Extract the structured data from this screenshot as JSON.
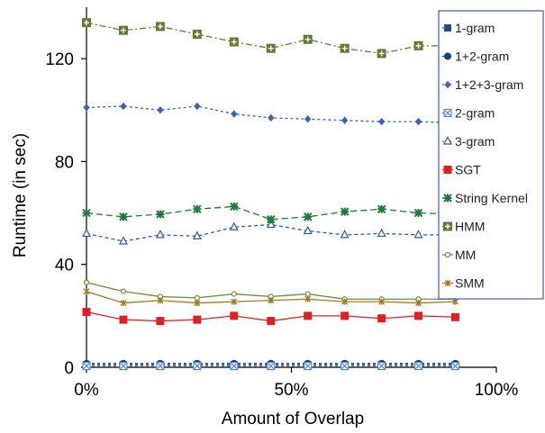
{
  "chart_data": {
    "type": "line",
    "title": "",
    "xlabel": "Amount of Overlap",
    "ylabel": "Runtime (in sec)",
    "x": [
      0,
      9,
      18,
      27,
      36,
      45,
      54,
      63,
      72,
      81,
      90
    ],
    "xlim": [
      0,
      100
    ],
    "ylim": [
      0,
      140
    ],
    "xticks": [
      0,
      50,
      100
    ],
    "xtick_labels": [
      "0%",
      "50%",
      "100%"
    ],
    "yticks": [
      0,
      40,
      80,
      120
    ],
    "ytick_labels": [
      "0",
      "40",
      "80",
      "120"
    ],
    "grid": false,
    "legend_position": "right",
    "series": [
      {
        "name": "1-gram",
        "color": "#1f4e8c",
        "marker": "square",
        "dash": "3,3",
        "values": [
          1.0,
          1.0,
          1.0,
          1.0,
          1.0,
          1.0,
          1.0,
          1.0,
          1.0,
          1.0,
          1.0
        ]
      },
      {
        "name": "1+2-gram",
        "color": "#1f3f7a",
        "marker": "circle",
        "dash": "3,3",
        "values": [
          1.5,
          1.5,
          1.5,
          1.5,
          1.5,
          1.5,
          1.5,
          1.5,
          1.5,
          1.5,
          1.5
        ]
      },
      {
        "name": "1+2+3-gram",
        "color": "#3b63b8",
        "marker": "diamond",
        "dash": "3,3",
        "values": [
          101,
          101.5,
          100,
          101.5,
          98.5,
          97,
          96.5,
          96,
          95.5,
          95.5,
          95
        ]
      },
      {
        "name": "2-gram",
        "color": "#4f87d6",
        "marker": "xsquare",
        "dash": "3,3",
        "values": [
          0.5,
          0.5,
          0.5,
          0.5,
          0.5,
          0.5,
          0.5,
          0.5,
          0.5,
          0.5,
          0.5
        ]
      },
      {
        "name": "3-gram",
        "color": "#2d5aa8",
        "marker": "triangle",
        "dash": "4,3",
        "values": [
          52,
          49,
          51.5,
          51,
          54.5,
          55.5,
          53,
          51.5,
          52,
          51.5,
          51.5
        ]
      },
      {
        "name": "SGT",
        "color": "#e02020",
        "marker": "filledsquare",
        "dash": "",
        "values": [
          21.5,
          18.5,
          18,
          18.5,
          20,
          18,
          20,
          20,
          19,
          20,
          19.5
        ]
      },
      {
        "name": "String Kernel",
        "color": "#1e7a38",
        "marker": "star",
        "dash": "7,4",
        "values": [
          60,
          58.5,
          59.5,
          61.5,
          62.5,
          57.5,
          58.5,
          60.5,
          61.5,
          60,
          59.5
        ]
      },
      {
        "name": "HMM",
        "color": "#5e7d2e",
        "marker": "plussquare",
        "dash": "7,3,2,3",
        "values": [
          134,
          131,
          132.5,
          129.5,
          126.5,
          124,
          127.5,
          124,
          122,
          125,
          125
        ]
      },
      {
        "name": "MM",
        "color": "#6f8f3a",
        "marker": "smallcircle",
        "dash": "",
        "values": [
          33,
          29.5,
          27.5,
          27,
          28.5,
          27.5,
          28.5,
          26.5,
          26.5,
          26.5,
          26.5
        ]
      },
      {
        "name": "SMM",
        "color": "#a8781e",
        "marker": "smallstar",
        "dash": "",
        "values": [
          29.5,
          25,
          26,
          25,
          25.5,
          26,
          26.5,
          25.5,
          25.5,
          25,
          25.5
        ]
      }
    ]
  }
}
